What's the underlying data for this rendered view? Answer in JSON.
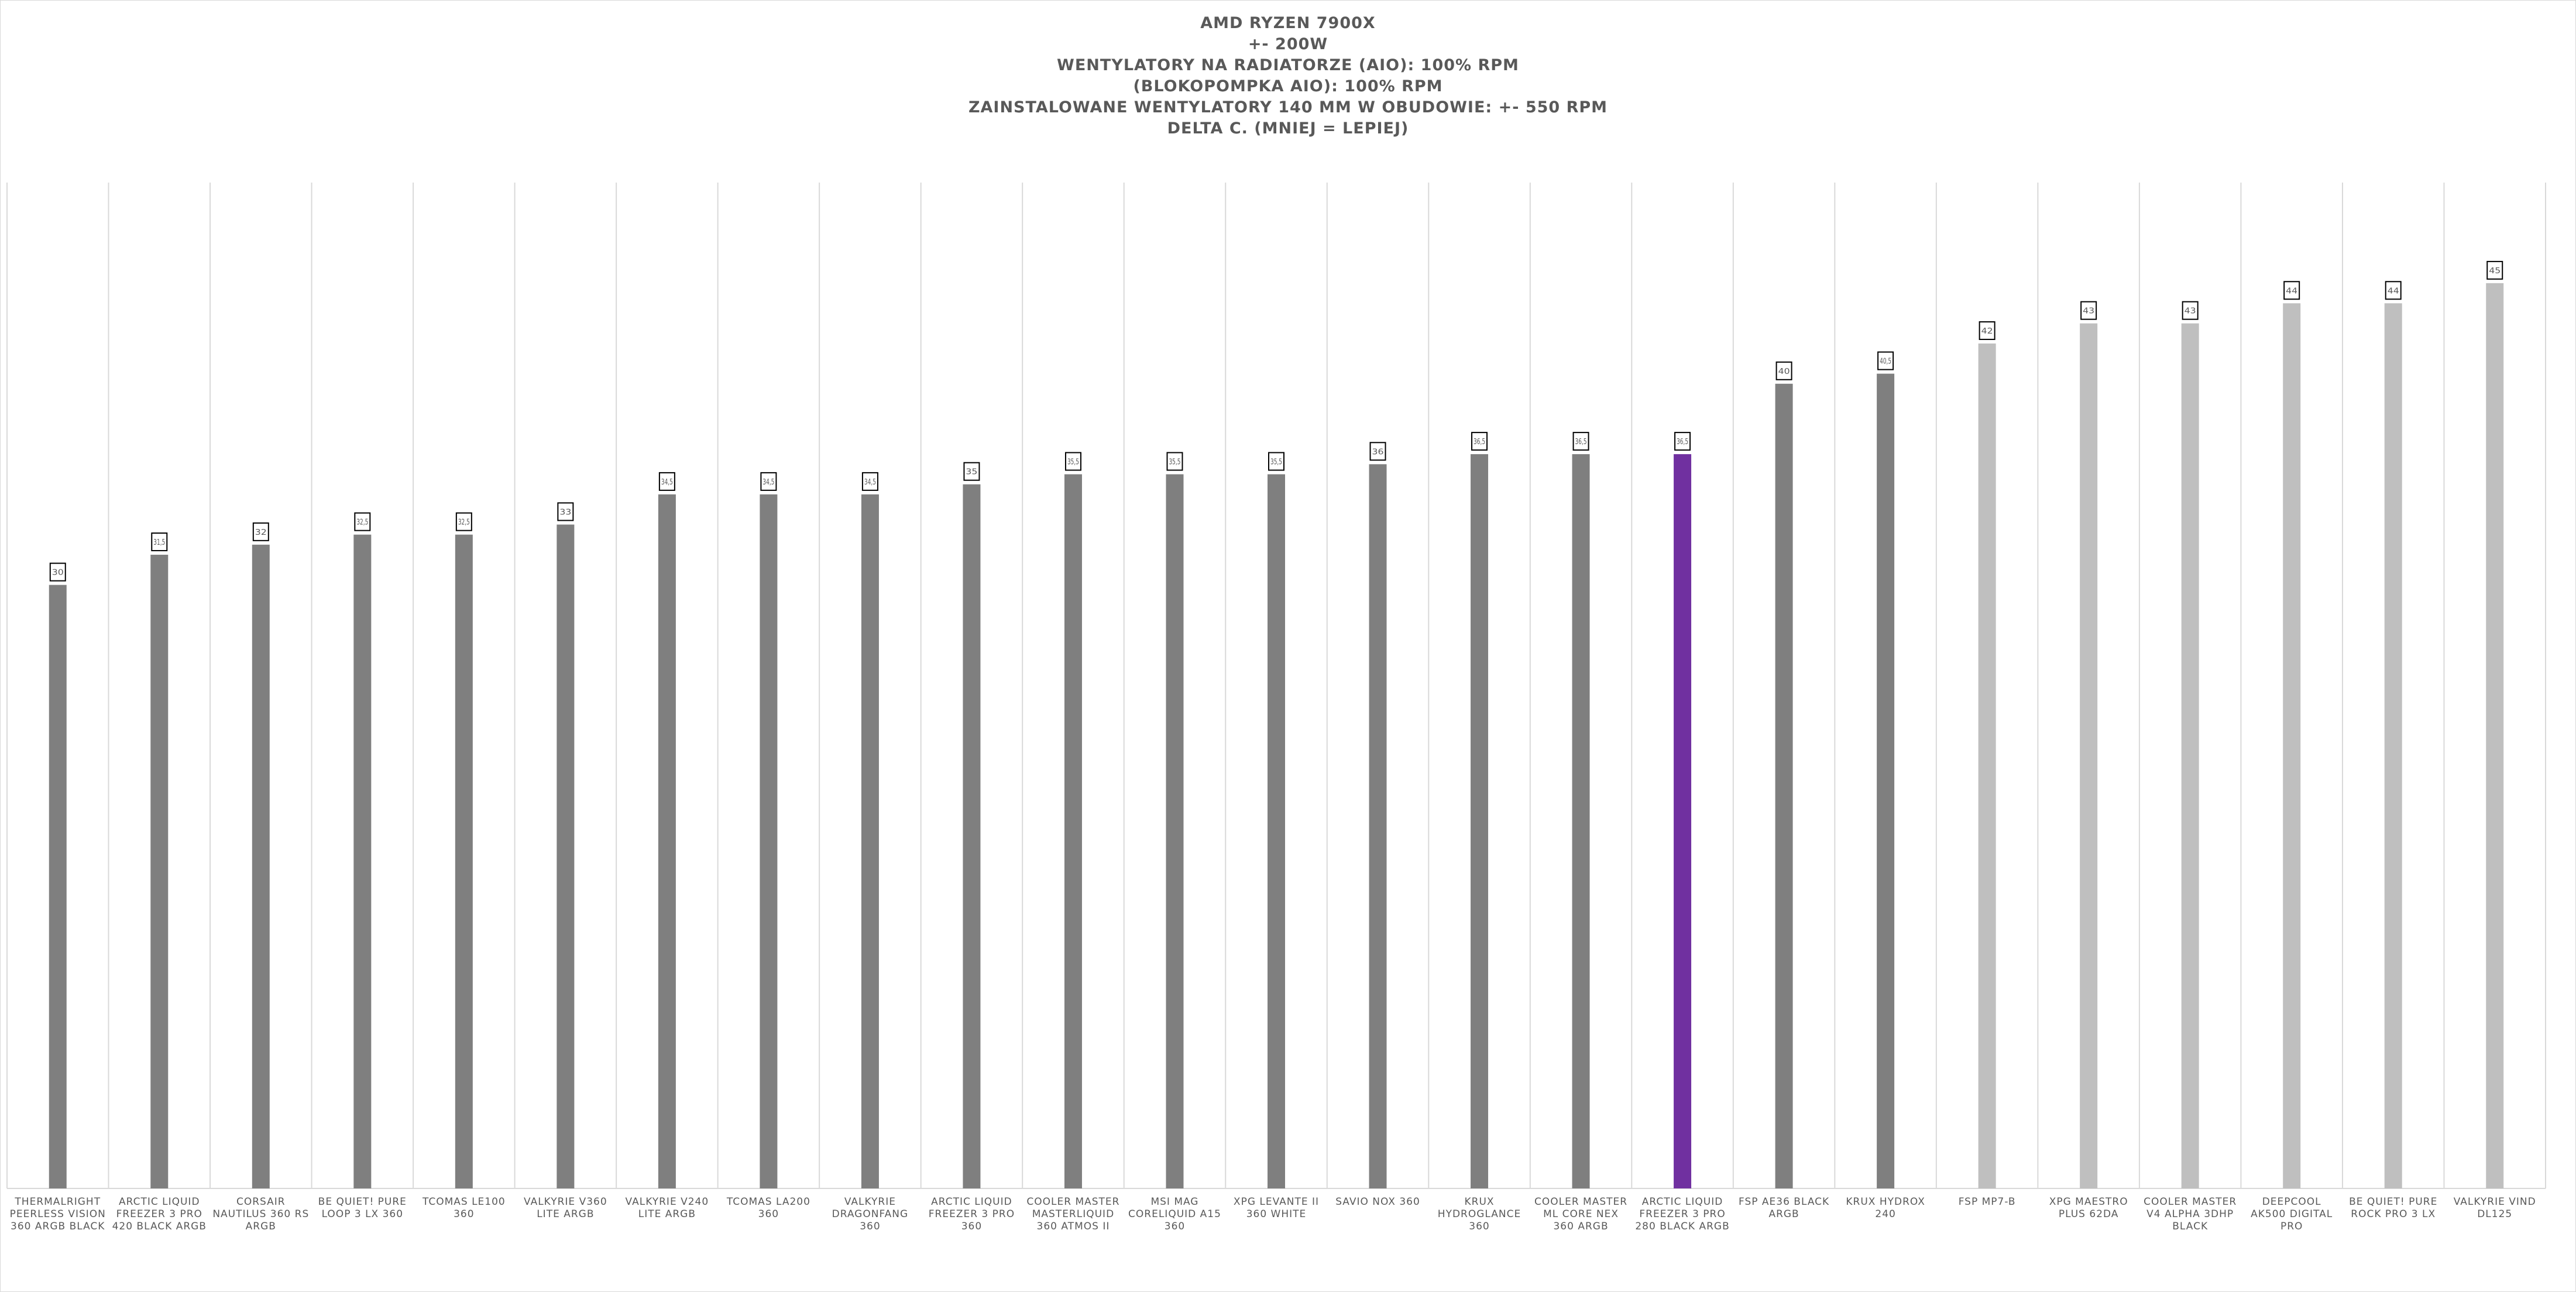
{
  "chart_data": {
    "type": "bar",
    "title_lines": [
      "AMD RYZEN 7900X",
      "+- 200W",
      "WENTYLATORY NA RADIATORZE (AIO): 100% RPM",
      "(BLOKOPOMPKA AIO): 100% RPM",
      "ZAINSTALOWANE WENTYLATORY 140 MM W OBUDOWIE: +- 550 RPM",
      "DELTA C. (MNIEJ = LEPIEJ)"
    ],
    "xlabel": "",
    "ylabel": "",
    "ylim": [
      0,
      50
    ],
    "grid": "vertical",
    "legend": "none",
    "categories": [
      "THERMALRIGHT PEERLESS VISION 360 ARGB BLACK",
      "ARCTIC LIQUID FREEZER 3 PRO 420 BLACK ARGB",
      "CORSAIR NAUTILUS 360 RS ARGB",
      "BE QUIET! PURE LOOP 3 LX 360",
      "TCOMAS LE100 360",
      "VALKYRIE V360 LITE ARGB",
      "VALKYRIE V240 LITE ARGB",
      "TCOMAS LA200 360",
      "VALKYRIE DRAGONFANG 360",
      "ARCTIC LIQUID FREEZER 3 PRO 360",
      "COOLER MASTER MASTERLIQUID 360 ATMOS II",
      "MSI MAG CORELIQUID A15 360",
      "XPG LEVANTE II 360 WHITE",
      "SAVIO NOX 360",
      "KRUX HYDROGLANCE 360",
      "COOLER MASTER ML CORE NEX 360 ARGB",
      "ARCTIC LIQUID FREEZER 3 PRO 280 BLACK ARGB",
      "FSP AE36 BLACK ARGB",
      "KRUX HYDROX 240",
      "FSP MP7-B",
      "XPG MAESTRO PLUS 62DA",
      "COOLER MASTER V4 ALPHA 3DHP BLACK",
      "DEEPCOOL AK500 DIGITAL PRO",
      "BE QUIET! PURE ROCK PRO 3 LX",
      "VALKYRIE VIND DL125"
    ],
    "values": [
      30,
      31.5,
      32,
      32.5,
      32.5,
      33,
      34.5,
      34.5,
      34.5,
      35,
      35.5,
      35.5,
      35.5,
      36,
      36.5,
      36.5,
      36.5,
      40,
      40.5,
      42,
      43,
      43,
      44,
      44,
      45
    ],
    "data_labels": [
      "30",
      "31,5",
      "32",
      "32,5",
      "32,5",
      "33",
      "34,5",
      "34,5",
      "34,5",
      "35",
      "35,5",
      "35,5",
      "35,5",
      "36",
      "36,5",
      "36,5",
      "36,5",
      "40",
      "40,5",
      "42",
      "43",
      "43",
      "44",
      "44",
      "45"
    ],
    "bar_colors": [
      "#7f7f7f",
      "#7f7f7f",
      "#7f7f7f",
      "#7f7f7f",
      "#7f7f7f",
      "#7f7f7f",
      "#7f7f7f",
      "#7f7f7f",
      "#7f7f7f",
      "#7f7f7f",
      "#7f7f7f",
      "#7f7f7f",
      "#7f7f7f",
      "#7f7f7f",
      "#7f7f7f",
      "#7f7f7f",
      "#7030a0",
      "#7f7f7f",
      "#7f7f7f",
      "#bfbfbf",
      "#bfbfbf",
      "#bfbfbf",
      "#bfbfbf",
      "#bfbfbf",
      "#bfbfbf"
    ],
    "colors": {
      "aio": "#7f7f7f",
      "highlight": "#7030a0",
      "air": "#bfbfbf",
      "gridline": "#d9d9d9",
      "label_box_border": "#000000",
      "text": "#595959"
    }
  }
}
